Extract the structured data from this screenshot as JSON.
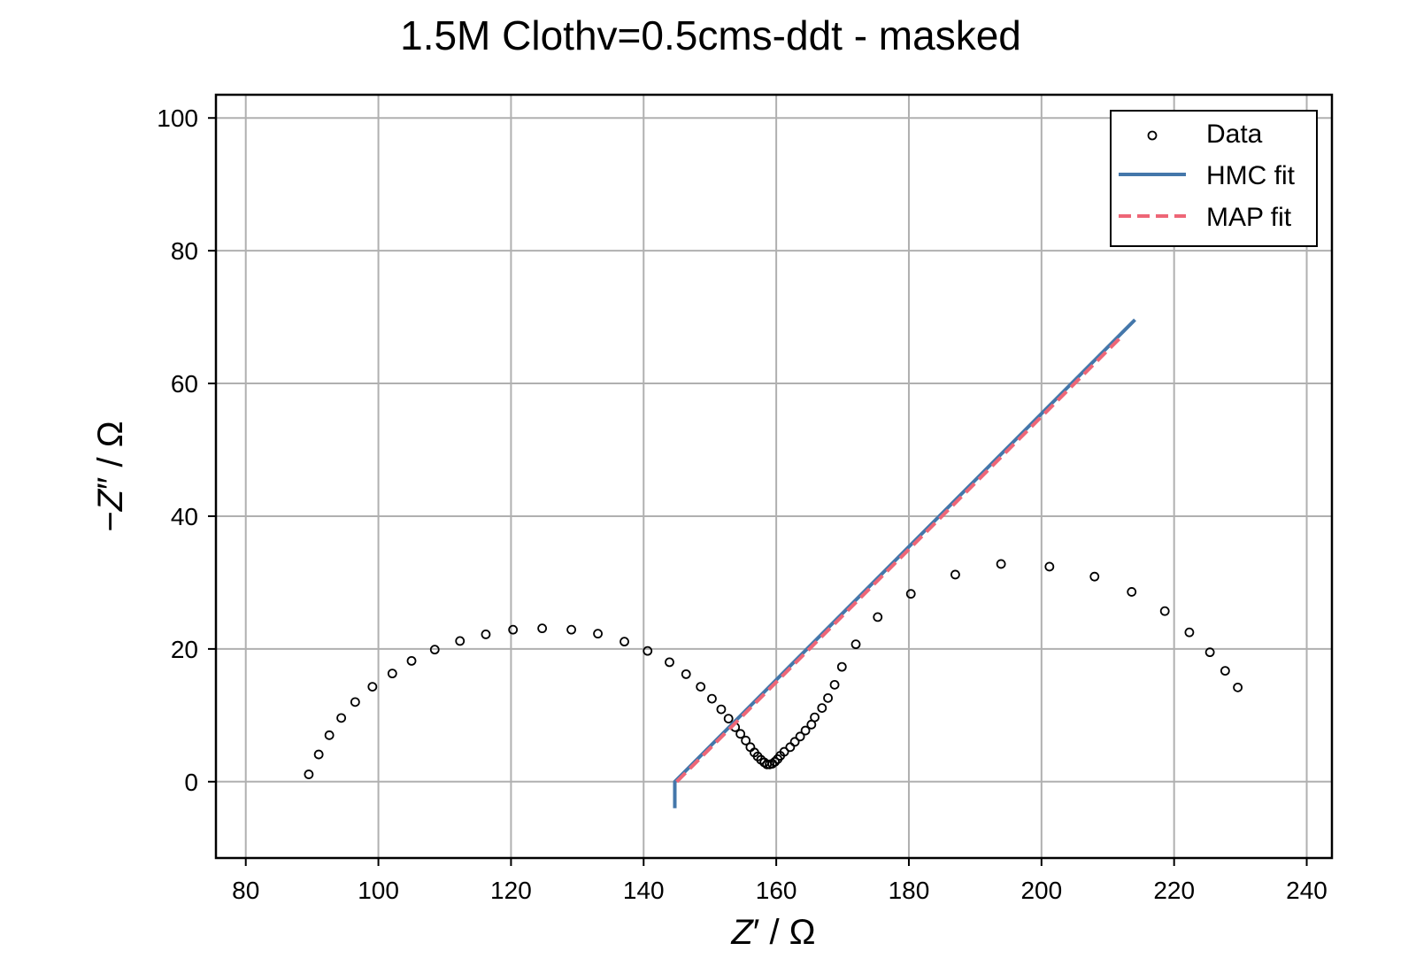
{
  "chart_data": {
    "type": "scatter",
    "title": "1.5M Clothv=0.5cms-ddt - masked",
    "xlabel_main": "Z",
    "xlabel_prime": "′",
    "xlabel_unit": " / Ω",
    "ylabel_prefix": "−",
    "ylabel_main": "Z",
    "ylabel_prime": "″",
    "ylabel_unit": " / Ω",
    "xlim": [
      75.5,
      243.8
    ],
    "ylim": [
      -11.5,
      103.5
    ],
    "xticks": [
      80,
      100,
      120,
      140,
      160,
      180,
      200,
      220,
      240
    ],
    "yticks": [
      0,
      20,
      40,
      60,
      80,
      100
    ],
    "grid": true,
    "legend_position": "top-right",
    "legend": [
      {
        "label": "Data",
        "kind": "marker"
      },
      {
        "label": "HMC fit",
        "kind": "solid"
      },
      {
        "label": "MAP fit",
        "kind": "dashed"
      }
    ],
    "colors": {
      "data": "#000000",
      "hmc": "#4477aa",
      "map": "#ee6677",
      "grid": "#b0b0b0"
    },
    "series": [
      {
        "name": "Data",
        "style": "marker",
        "points": [
          [
            89.5,
            1.1
          ],
          [
            91.0,
            4.1
          ],
          [
            92.6,
            7.0
          ],
          [
            94.4,
            9.6
          ],
          [
            96.5,
            12.0
          ],
          [
            99.1,
            14.3
          ],
          [
            102.1,
            16.3
          ],
          [
            105.0,
            18.2
          ],
          [
            108.5,
            19.9
          ],
          [
            112.3,
            21.2
          ],
          [
            116.2,
            22.2
          ],
          [
            120.3,
            22.9
          ],
          [
            124.7,
            23.1
          ],
          [
            129.1,
            22.9
          ],
          [
            133.1,
            22.3
          ],
          [
            137.1,
            21.1
          ],
          [
            140.6,
            19.7
          ],
          [
            143.9,
            18.0
          ],
          [
            146.4,
            16.2
          ],
          [
            148.6,
            14.3
          ],
          [
            150.3,
            12.5
          ],
          [
            151.7,
            10.9
          ],
          [
            152.8,
            9.5
          ],
          [
            153.8,
            8.2
          ],
          [
            154.6,
            7.2
          ],
          [
            155.4,
            6.2
          ],
          [
            156.1,
            5.2
          ],
          [
            156.7,
            4.4
          ],
          [
            157.2,
            3.8
          ],
          [
            157.7,
            3.3
          ],
          [
            158.2,
            2.9
          ],
          [
            158.6,
            2.6
          ],
          [
            159.0,
            2.6
          ],
          [
            159.4,
            2.7
          ],
          [
            159.8,
            3.0
          ],
          [
            160.2,
            3.4
          ],
          [
            160.6,
            3.9
          ],
          [
            161.2,
            4.5
          ],
          [
            162.1,
            5.2
          ],
          [
            162.8,
            6.0
          ],
          [
            163.6,
            6.8
          ],
          [
            164.4,
            7.7
          ],
          [
            165.3,
            8.6
          ],
          [
            165.8,
            9.7
          ],
          [
            166.9,
            11.1
          ],
          [
            167.8,
            12.6
          ],
          [
            168.8,
            14.6
          ],
          [
            169.9,
            17.3
          ],
          [
            172.0,
            20.7
          ],
          [
            175.3,
            24.8
          ],
          [
            180.3,
            28.3
          ],
          [
            187.0,
            31.2
          ],
          [
            193.9,
            32.8
          ],
          [
            201.2,
            32.4
          ],
          [
            208.0,
            30.9
          ],
          [
            213.6,
            28.6
          ],
          [
            218.6,
            25.7
          ],
          [
            222.3,
            22.5
          ],
          [
            225.4,
            19.5
          ],
          [
            227.7,
            16.7
          ],
          [
            229.6,
            14.2
          ]
        ]
      },
      {
        "name": "HMC fit",
        "style": "solid",
        "points": [
          [
            144.7,
            -4.0
          ],
          [
            144.7,
            0.0
          ],
          [
            214.1,
            69.6
          ]
        ]
      },
      {
        "name": "MAP fit",
        "style": "dashed",
        "points": [
          [
            145.0,
            0.0
          ],
          [
            212.0,
            67.0
          ]
        ]
      }
    ]
  }
}
